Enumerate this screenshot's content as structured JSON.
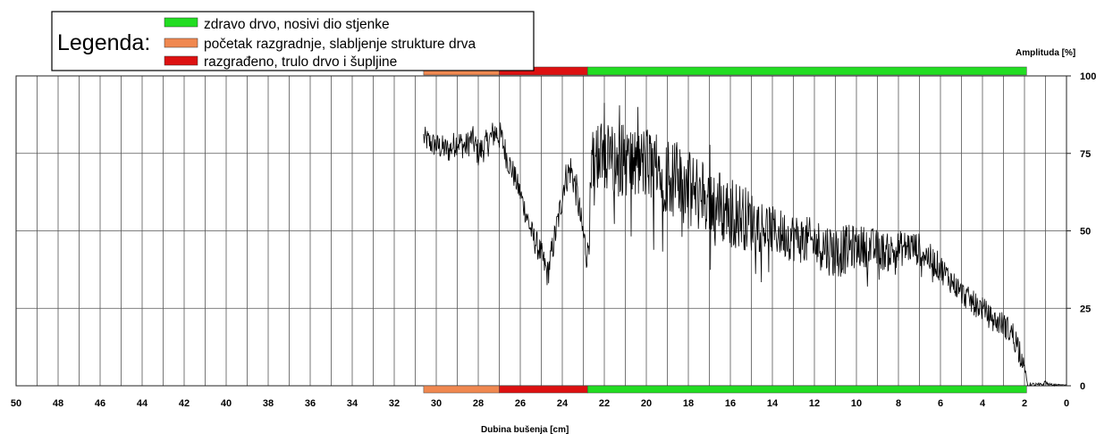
{
  "legend": {
    "title": "Legenda:",
    "items": [
      {
        "label": "zdravo drvo, nosivi dio stjenke",
        "color": "#22dd22"
      },
      {
        "label": "početak razgradnje, slabljenje strukture drva",
        "color": "#f08850"
      },
      {
        "label": "razgrađeno, trulo drvo i šupljine",
        "color": "#dd1111"
      }
    ]
  },
  "chart_data": {
    "type": "line",
    "title": "",
    "xlabel": "Dubina bušenja [cm]",
    "ylabel": "Amplituda [%]",
    "xlim": [
      50,
      0
    ],
    "ylim": [
      0,
      100
    ],
    "x_ticks": [
      50,
      48,
      46,
      44,
      42,
      40,
      38,
      36,
      34,
      32,
      30,
      28,
      26,
      24,
      22,
      20,
      18,
      16,
      14,
      12,
      10,
      8,
      6,
      4,
      2,
      0
    ],
    "y_ticks": [
      0,
      25,
      50,
      75,
      100
    ],
    "x_gridlines_every": 1,
    "grid": true,
    "bands": [
      {
        "from": 30.6,
        "to": 27.0,
        "class": "početak razgradnje, slabljenje strukture drva",
        "color": "#f08850"
      },
      {
        "from": 27.0,
        "to": 22.8,
        "class": "razgrađeno, trulo drvo i šupljine",
        "color": "#dd1111"
      },
      {
        "from": 22.8,
        "to": 1.9,
        "class": "zdravo drvo, nosivi dio stjenke",
        "color": "#22dd22"
      }
    ],
    "series": [
      {
        "points": [
          [
            30.6,
            80
          ],
          [
            30.2,
            78
          ],
          [
            29.8,
            77
          ],
          [
            29.4,
            76
          ],
          [
            29.0,
            79
          ],
          [
            28.6,
            77
          ],
          [
            28.3,
            80
          ],
          [
            28.0,
            75
          ],
          [
            27.6,
            78
          ],
          [
            27.2,
            82
          ],
          [
            26.9,
            80
          ],
          [
            26.6,
            73
          ],
          [
            26.3,
            68
          ],
          [
            26.0,
            62
          ],
          [
            25.7,
            55
          ],
          [
            25.4,
            48
          ],
          [
            25.1,
            44
          ],
          [
            24.9,
            40
          ],
          [
            24.7,
            36
          ],
          [
            24.5,
            43
          ],
          [
            24.3,
            50
          ],
          [
            24.1,
            57
          ],
          [
            23.9,
            66
          ],
          [
            23.6,
            70
          ],
          [
            23.3,
            62
          ],
          [
            23.1,
            52
          ],
          [
            22.9,
            45
          ],
          [
            22.8,
            42
          ],
          [
            22.5,
            76
          ],
          [
            22.0,
            74
          ],
          [
            21.5,
            72
          ],
          [
            21.0,
            73
          ],
          [
            20.5,
            71
          ],
          [
            20.0,
            72
          ],
          [
            19.5,
            70
          ],
          [
            19.0,
            68
          ],
          [
            18.5,
            66
          ],
          [
            18.0,
            63
          ],
          [
            17.5,
            62
          ],
          [
            17.0,
            60
          ],
          [
            16.5,
            58
          ],
          [
            16.0,
            56
          ],
          [
            15.5,
            55
          ],
          [
            15.0,
            53
          ],
          [
            14.5,
            52
          ],
          [
            14.0,
            50
          ],
          [
            13.5,
            49
          ],
          [
            13.0,
            48
          ],
          [
            12.5,
            47
          ],
          [
            12.0,
            46
          ],
          [
            11.5,
            45
          ],
          [
            11.0,
            43
          ],
          [
            10.5,
            44
          ],
          [
            10.0,
            45
          ],
          [
            9.5,
            45
          ],
          [
            9.0,
            44
          ],
          [
            8.5,
            43
          ],
          [
            8.0,
            44
          ],
          [
            7.5,
            45
          ],
          [
            7.0,
            44
          ],
          [
            6.5,
            41
          ],
          [
            6.0,
            38
          ],
          [
            5.5,
            34
          ],
          [
            5.0,
            30
          ],
          [
            4.5,
            27
          ],
          [
            4.0,
            25
          ],
          [
            3.5,
            21
          ],
          [
            3.0,
            20
          ],
          [
            2.5,
            16
          ],
          [
            2.2,
            11
          ],
          [
            2.0,
            6
          ],
          [
            1.9,
            2
          ],
          [
            1.85,
            0.2
          ],
          [
            1.8,
            0.2
          ],
          [
            1.5,
            0.3
          ],
          [
            1.3,
            0.2
          ],
          [
            1.1,
            0.5
          ],
          [
            1.0,
            1.5
          ],
          [
            0.9,
            0.5
          ],
          [
            0.6,
            0.3
          ],
          [
            0.3,
            0.3
          ],
          [
            0.0,
            0.3
          ]
        ],
        "spread": [
          [
            30.6,
            4
          ],
          [
            27.0,
            5
          ],
          [
            26.0,
            4
          ],
          [
            24.5,
            5
          ],
          [
            22.8,
            6
          ],
          [
            22.6,
            12
          ],
          [
            21.0,
            12
          ],
          [
            18.5,
            13
          ],
          [
            17.0,
            12
          ],
          [
            16.0,
            12
          ],
          [
            14.0,
            8
          ],
          [
            12.0,
            8
          ],
          [
            11.0,
            9
          ],
          [
            10.0,
            7
          ],
          [
            8.0,
            6
          ],
          [
            6.5,
            5
          ],
          [
            5.0,
            4
          ],
          [
            3.0,
            4
          ],
          [
            2.2,
            5
          ],
          [
            2.0,
            1
          ],
          [
            0.0,
            0
          ]
        ]
      }
    ]
  },
  "axis_labels": {
    "x": "Dubina bušenja [cm]",
    "y": "Amplituda [%]"
  }
}
